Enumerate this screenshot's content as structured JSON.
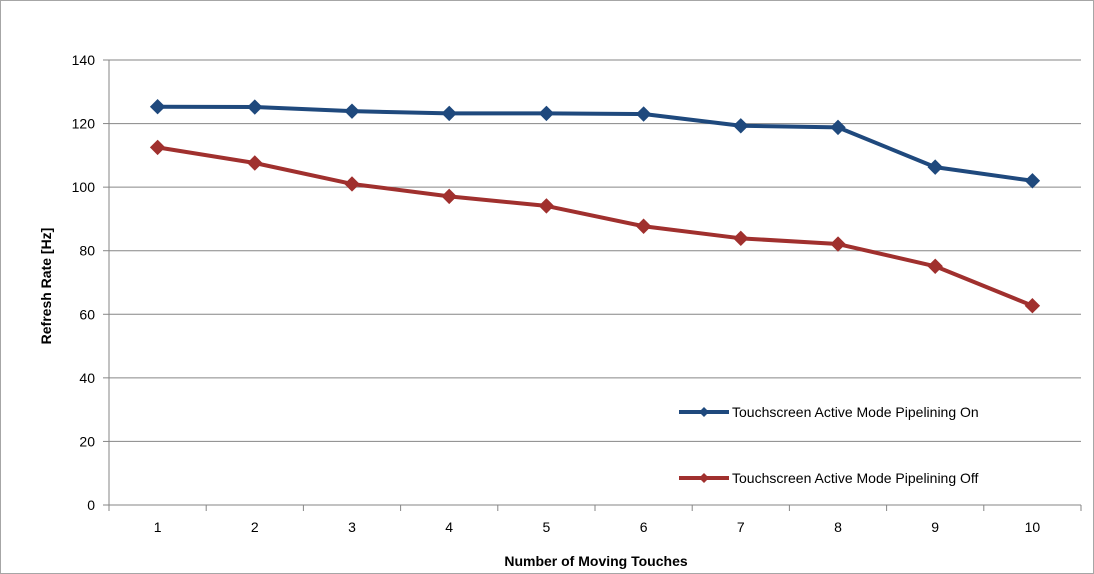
{
  "chart_data": {
    "type": "line",
    "title": "",
    "xlabel": "Number of Moving Touches",
    "ylabel": "Refresh Rate [Hz]",
    "categories": [
      "1",
      "2",
      "3",
      "4",
      "5",
      "6",
      "7",
      "8",
      "9",
      "10"
    ],
    "ylim": [
      0,
      140
    ],
    "yticks": [
      0,
      20,
      40,
      60,
      80,
      100,
      120,
      140
    ],
    "grid": "horizontal",
    "legend_position": "lower-right",
    "series": [
      {
        "name": "Touchscreen Active Mode Pipelining On",
        "color": "#1f497d",
        "marker": "diamond",
        "values": [
          125.3,
          125.2,
          123.9,
          123.2,
          123.2,
          123.0,
          119.3,
          118.8,
          106.3,
          102.0
        ]
      },
      {
        "name": "Touchscreen Active Mode Pipelining Off",
        "color": "#a0302e",
        "marker": "diamond",
        "values": [
          112.5,
          107.6,
          101.0,
          97.1,
          94.1,
          87.7,
          83.9,
          82.1,
          75.1,
          62.7
        ]
      }
    ]
  }
}
